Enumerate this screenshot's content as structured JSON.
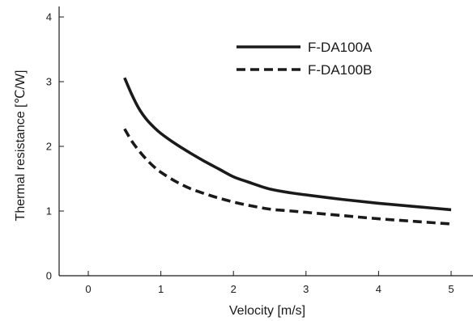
{
  "chart_data": {
    "type": "line",
    "title": "",
    "xlabel": "Velocity [m/s]",
    "ylabel": "Thermal resistance [℃/W]",
    "xlim": [
      -0.2,
      5.2
    ],
    "ylim": [
      0,
      4.2
    ],
    "xticks": [
      0,
      1,
      2,
      3,
      4,
      5
    ],
    "yticks": [
      0,
      1,
      2,
      3,
      4
    ],
    "grid": false,
    "legend_position": "top-right",
    "series": [
      {
        "name": "F-DA100A",
        "line_style": "solid",
        "color": "#1a1a1a",
        "x": [
          0.5,
          0.6,
          0.7,
          0.8,
          0.9,
          1.0,
          1.2,
          1.4,
          1.6,
          1.8,
          2.0,
          2.2,
          2.5,
          2.8,
          3.0,
          3.5,
          4.0,
          4.5,
          5.0
        ],
        "y": [
          3.06,
          2.8,
          2.58,
          2.42,
          2.3,
          2.2,
          2.04,
          1.9,
          1.77,
          1.65,
          1.53,
          1.45,
          1.34,
          1.28,
          1.25,
          1.18,
          1.12,
          1.07,
          1.02
        ]
      },
      {
        "name": "F-DA100B",
        "line_style": "dashed",
        "color": "#1a1a1a",
        "x": [
          0.5,
          0.6,
          0.7,
          0.8,
          0.9,
          1.0,
          1.2,
          1.4,
          1.6,
          1.8,
          2.0,
          2.2,
          2.5,
          2.8,
          3.0,
          3.5,
          4.0,
          4.5,
          5.0
        ],
        "y": [
          2.27,
          2.08,
          1.93,
          1.8,
          1.69,
          1.6,
          1.46,
          1.35,
          1.27,
          1.2,
          1.14,
          1.09,
          1.03,
          1.0,
          0.98,
          0.93,
          0.88,
          0.84,
          0.8
        ]
      }
    ]
  }
}
